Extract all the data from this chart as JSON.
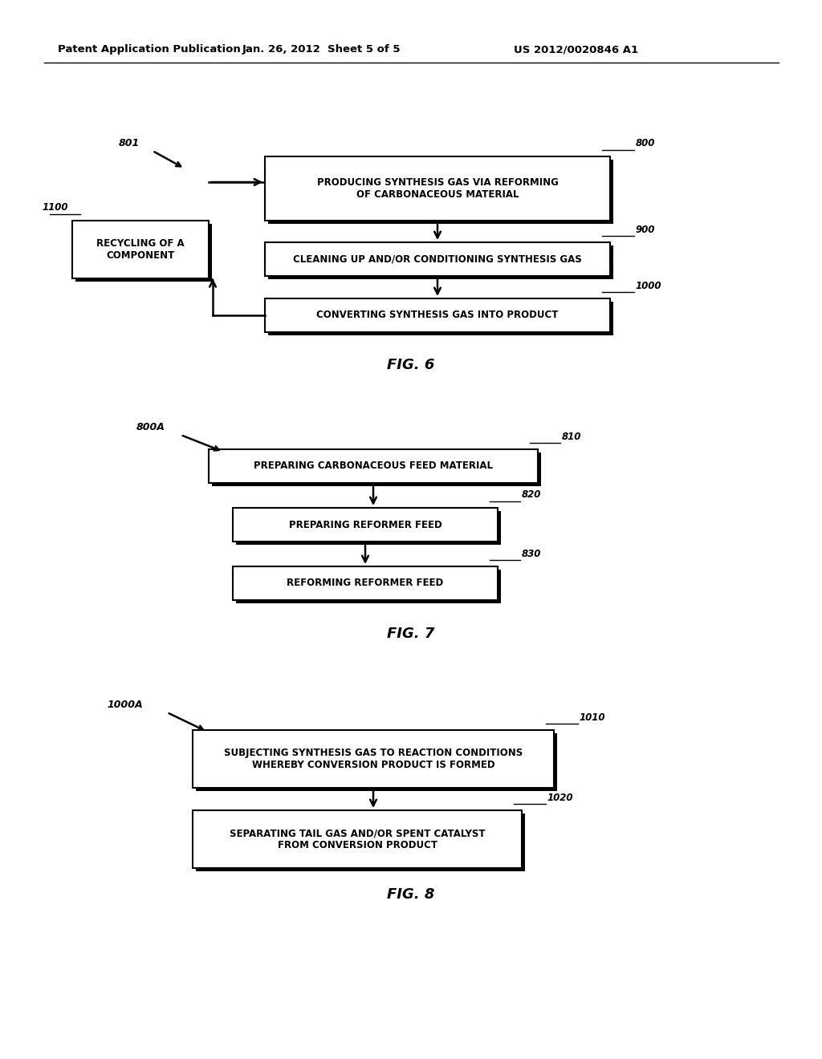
{
  "bg_color": "#ffffff",
  "header_left": "Patent Application Publication",
  "header_middle": "Jan. 26, 2012  Sheet 5 of 5",
  "header_right": "US 2012/0020846 A1",
  "fig6": {
    "fig_label": "FIG. 6",
    "label_801": "801",
    "label_1100": "1100",
    "box800": {
      "text": "PRODUCING SYNTHESIS GAS VIA REFORMING\nOF CARBONACEOUS MATERIAL",
      "label": "800"
    },
    "box900": {
      "text": "CLEANING UP AND/OR CONDITIONING SYNTHESIS GAS",
      "label": "900"
    },
    "box1000": {
      "text": "CONVERTING SYNTHESIS GAS INTO PRODUCT",
      "label": "1000"
    },
    "box1100": {
      "text": "RECYCLING OF A\nCOMPONENT",
      "label": "1100"
    }
  },
  "fig7": {
    "fig_label": "FIG. 7",
    "label_800A": "800A",
    "box810": {
      "text": "PREPARING CARBONACEOUS FEED MATERIAL",
      "label": "810"
    },
    "box820": {
      "text": "PREPARING REFORMER FEED",
      "label": "820"
    },
    "box830": {
      "text": "REFORMING REFORMER FEED",
      "label": "830"
    }
  },
  "fig8": {
    "fig_label": "FIG. 8",
    "label_1000A": "1000A",
    "box1010": {
      "text": "SUBJECTING SYNTHESIS GAS TO REACTION CONDITIONS\nWHEREBY CONVERSION PRODUCT IS FORMED",
      "label": "1010"
    },
    "box1020": {
      "text": "SEPARATING TAIL GAS AND/OR SPENT CATALYST\nFROM CONVERSION PRODUCT",
      "label": "1020"
    }
  }
}
